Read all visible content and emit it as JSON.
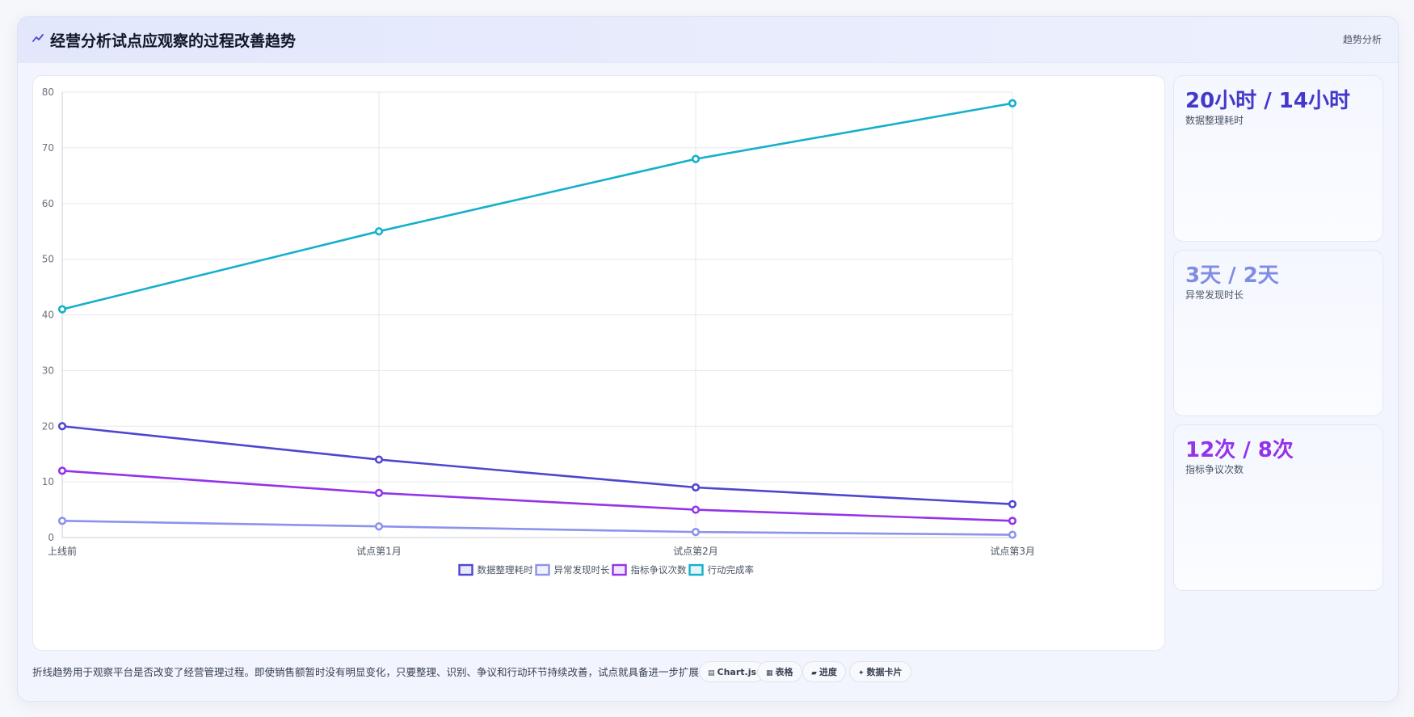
{
  "header": {
    "title": "经营分析试点应观察的过程改善趋势",
    "tag": "趋势分析"
  },
  "chart_data": {
    "type": "line",
    "categories": [
      "上线前",
      "试点第1月",
      "试点第2月",
      "试点第3月"
    ],
    "ylim": [
      0,
      80
    ],
    "yticks": [
      0,
      10,
      20,
      30,
      40,
      50,
      60,
      70,
      80
    ],
    "grid": true,
    "legend_position": "bottom",
    "series": [
      {
        "name": "数据整理耗时",
        "values": [
          20,
          14,
          9,
          6
        ],
        "color": "#4f46d0"
      },
      {
        "name": "异常发现时长",
        "values": [
          3,
          2,
          1,
          0.5
        ],
        "color": "#8b93ec"
      },
      {
        "name": "指标争议次数",
        "values": [
          12,
          8,
          5,
          3
        ],
        "color": "#9333ea"
      },
      {
        "name": "行动完成率",
        "values": [
          41,
          55,
          68,
          78
        ],
        "color": "#14b0c9"
      }
    ]
  },
  "stats": [
    {
      "value": "20小时 / 14小时",
      "label": "数据整理耗时",
      "color": "#4338ca"
    },
    {
      "value": "3天 / 2天",
      "label": "异常发现时长",
      "color": "#7f8ce6"
    },
    {
      "value": "12次 / 8次",
      "label": "指标争议次数",
      "color": "#9333ea"
    }
  ],
  "footer": {
    "note": "折线趋势用于观察平台是否改变了经营管理过程。即使销售额暂时没有明显变化，只要整理、识别、争议和行动环节持续改善，试点就具备进一步扩展的依据。",
    "chips": [
      {
        "icon": "▤",
        "label": "Chart.js"
      },
      {
        "icon": "▦",
        "label": "表格"
      },
      {
        "icon": "▰",
        "label": "进度"
      },
      {
        "icon": "✦",
        "label": "数据卡片"
      }
    ]
  }
}
